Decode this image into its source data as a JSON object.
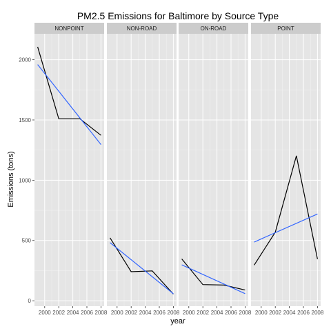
{
  "chart_data": {
    "type": "line",
    "title": "PM2.5 Emissions for Baltimore by Source Type",
    "xlabel": "year",
    "ylabel": "Emissions (tons)",
    "x": [
      1999,
      2002,
      2005,
      2008
    ],
    "x_ticks": [
      2000,
      2002,
      2004,
      2006,
      2008
    ],
    "y_ticks": [
      0,
      500,
      1000,
      1500,
      2000
    ],
    "xlim": [
      1998.55,
      2008.45
    ],
    "ylim": [
      -45,
      2215
    ],
    "grid": true,
    "colors": {
      "data_line": "#000000",
      "trend_line": "#3366ff",
      "panel_bg": "#e5e5e5",
      "strip_bg": "#cccccc",
      "grid": "#ffffff"
    },
    "facets": [
      {
        "label": "NONPOINT",
        "values": [
          2107,
          1510,
          1510,
          1373
        ],
        "trend": [
          1960,
          1296
        ]
      },
      {
        "label": "NON-ROAD",
        "values": [
          522,
          241,
          248,
          55
        ],
        "trend": [
          482,
          58
        ]
      },
      {
        "label": "ON-ROAD",
        "values": [
          347,
          134,
          130,
          89
        ],
        "trend": [
          298,
          59
        ]
      },
      {
        "label": "POINT",
        "values": [
          296,
          569,
          1203,
          345
        ],
        "trend": [
          487,
          720
        ]
      }
    ]
  }
}
